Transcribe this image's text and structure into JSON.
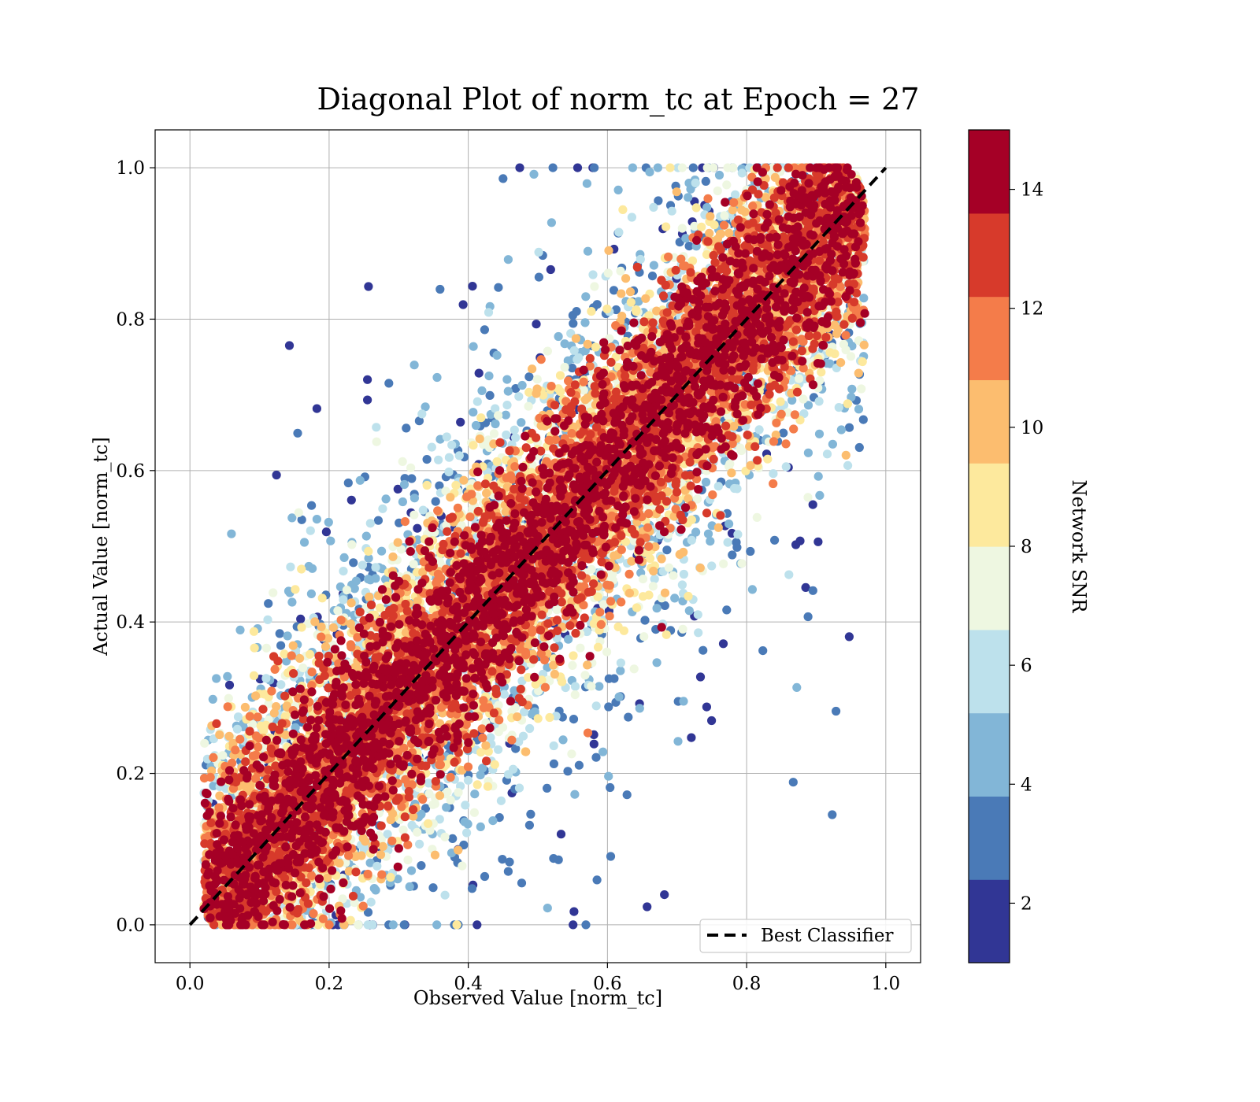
{
  "chart_data": {
    "type": "scatter",
    "title": "Diagonal Plot of norm_tc at Epoch = 27",
    "xlabel": "Observed Value [norm_tc]",
    "ylabel": "Actual Value [norm_tc]",
    "xlim": [
      -0.05,
      1.05
    ],
    "ylim": [
      -0.05,
      1.05
    ],
    "xticks": [
      0.0,
      0.2,
      0.4,
      0.6,
      0.8,
      1.0
    ],
    "yticks": [
      0.0,
      0.2,
      0.4,
      0.6,
      0.8,
      1.0
    ],
    "xtick_labels": [
      "0.0",
      "0.2",
      "0.4",
      "0.6",
      "0.8",
      "1.0"
    ],
    "ytick_labels": [
      "0.0",
      "0.2",
      "0.4",
      "0.6",
      "0.8",
      "1.0"
    ],
    "grid": true,
    "colorbar": {
      "label": "Network SNR",
      "range": [
        1,
        15
      ],
      "ticks": [
        2,
        4,
        6,
        8,
        10,
        12,
        14
      ],
      "tick_labels": [
        "2",
        "4",
        "6",
        "8",
        "10",
        "12",
        "14"
      ],
      "colors": [
        "#313695",
        "#4575b4",
        "#74add1",
        "#abd9e9",
        "#e0f3f8",
        "#ffffbf",
        "#fee090",
        "#fdae61",
        "#f46d43",
        "#d73027",
        "#a50026"
      ],
      "display_colors": [
        "#313695",
        "#4a7ab7",
        "#82b6d7",
        "#bde1ec",
        "#eef7e1",
        "#fde99d",
        "#fcbd6f",
        "#f47c4a",
        "#d73a2b",
        "#a50026"
      ]
    },
    "reference_line": {
      "label": "Best Classifier",
      "x": [
        0.0,
        1.0
      ],
      "y": [
        0.0,
        1.0
      ],
      "style": "dashed",
      "color": "#000000"
    },
    "legend_position": "lower-right",
    "point_distribution": {
      "description_of_trend": "points cluster along y = x; high SNR near diagonal, low SNR farther off-diagonal",
      "snr_vs_offset": [
        {
          "snr": 14,
          "max_abs_offset": 0.1
        },
        {
          "snr": 12,
          "max_abs_offset": 0.14
        },
        {
          "snr": 10,
          "max_abs_offset": 0.2
        },
        {
          "snr": 8,
          "max_abs_offset": 0.3
        },
        {
          "snr": 6,
          "max_abs_offset": 0.45
        },
        {
          "snr": 4,
          "max_abs_offset": 0.55
        },
        {
          "snr": 2,
          "max_abs_offset": 0.65
        }
      ],
      "x_range": [
        0.02,
        0.97
      ],
      "y_range": [
        0.0,
        1.0
      ]
    }
  }
}
